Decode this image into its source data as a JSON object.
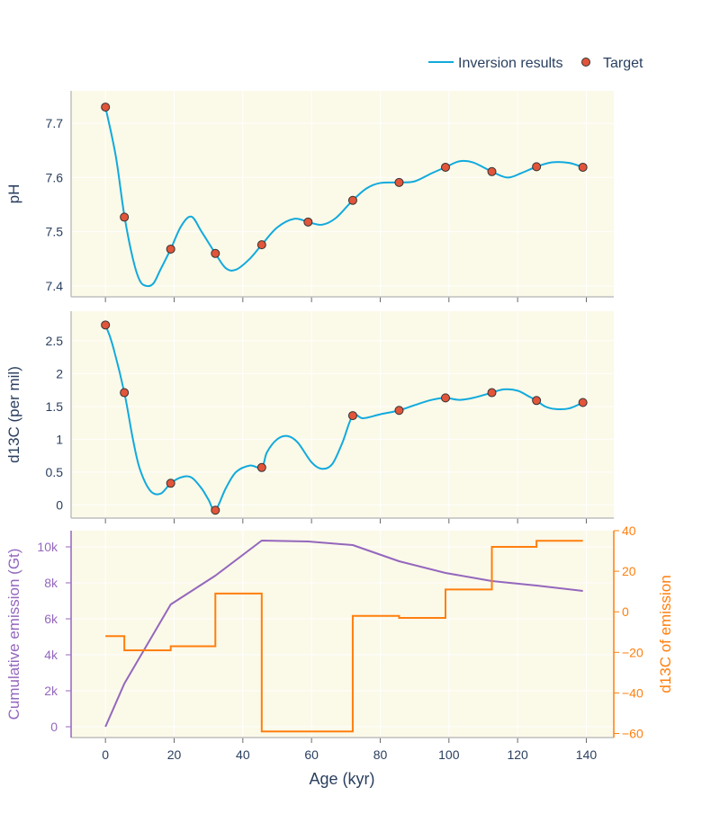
{
  "chart_data": {
    "type": "line",
    "legend": {
      "placement": "top-right",
      "entries": [
        {
          "label": "Inversion results",
          "kind": "line",
          "color": "#11aadd"
        },
        {
          "label": "Target",
          "kind": "marker",
          "color": "#e2553a"
        }
      ]
    },
    "x_axis": {
      "label": "Age (kyr)",
      "range": [
        -10,
        148
      ],
      "ticks": [
        0,
        20,
        40,
        60,
        80,
        100,
        120,
        140
      ],
      "tick_labels": [
        "0",
        "20",
        "40",
        "60",
        "80",
        "100",
        "120",
        "140"
      ]
    },
    "panels": [
      {
        "id": "ph",
        "ylabel": "pH",
        "ylim": [
          7.38,
          7.76
        ],
        "yticks": [
          7.4,
          7.5,
          7.6,
          7.7
        ],
        "ytick_labels": [
          "7.4",
          "7.5",
          "7.6",
          "7.7"
        ],
        "series": [
          {
            "name": "Inversion results",
            "type": "line",
            "color": "#11aadd",
            "x": [
              0,
              3,
              5.5,
              8,
              10,
              12,
              14,
              16,
              19,
              22,
              25,
              28,
              32,
              35,
              38,
              42,
              45.5,
              50,
              55,
              59,
              63,
              67,
              72,
              76,
              80,
              85.5,
              90,
              95,
              99,
              103,
              107,
              112.5,
              117,
              121,
              125.5,
              130,
              135,
              139
            ],
            "y": [
              7.73,
              7.64,
              7.53,
              7.45,
              7.41,
              7.4,
              7.405,
              7.43,
              7.468,
              7.51,
              7.528,
              7.5,
              7.46,
              7.433,
              7.43,
              7.45,
              7.476,
              7.508,
              7.524,
              7.518,
              7.513,
              7.525,
              7.558,
              7.58,
              7.59,
              7.591,
              7.593,
              7.608,
              7.619,
              7.63,
              7.628,
              7.611,
              7.6,
              7.608,
              7.62,
              7.628,
              7.627,
              7.619
            ]
          },
          {
            "name": "Target",
            "type": "scatter",
            "color": "#e2553a",
            "x": [
              0,
              5.5,
              19,
              32,
              45.5,
              59,
              72,
              85.5,
              99,
              112.5,
              125.5,
              139
            ],
            "y": [
              7.73,
              7.527,
              7.468,
              7.46,
              7.476,
              7.518,
              7.558,
              7.591,
              7.619,
              7.611,
              7.62,
              7.619
            ]
          }
        ]
      },
      {
        "id": "d13c",
        "ylabel": "d13C (per mil)",
        "ylim": [
          -0.2,
          2.95
        ],
        "yticks": [
          0,
          0.5,
          1,
          1.5,
          2,
          2.5
        ],
        "ytick_labels": [
          "0",
          "0.5",
          "1",
          "1.5",
          "2",
          "2.5"
        ],
        "series": [
          {
            "name": "Inversion results",
            "type": "line",
            "color": "#11aadd",
            "x": [
              0,
              2,
              5.5,
              8,
              10,
              13,
              16,
              19,
              22,
              25,
              28,
              30,
              32,
              35,
              38,
              42,
              45.5,
              47,
              50,
              53,
              56,
              60,
              63,
              66,
              69,
              72,
              75,
              80,
              85.5,
              90,
              95,
              99,
              103,
              107,
              112.5,
              116,
              120,
              123,
              125.5,
              128,
              131,
              135,
              139
            ],
            "y": [
              2.74,
              2.45,
              1.71,
              1.0,
              0.55,
              0.22,
              0.17,
              0.33,
              0.42,
              0.42,
              0.25,
              0.08,
              -0.08,
              0.25,
              0.5,
              0.6,
              0.57,
              0.8,
              1.0,
              1.05,
              0.95,
              0.65,
              0.55,
              0.62,
              0.95,
              1.36,
              1.32,
              1.38,
              1.44,
              1.52,
              1.6,
              1.63,
              1.6,
              1.63,
              1.71,
              1.76,
              1.74,
              1.66,
              1.59,
              1.5,
              1.46,
              1.47,
              1.56
            ]
          },
          {
            "name": "Target",
            "type": "scatter",
            "color": "#e2553a",
            "x": [
              0,
              5.5,
              19,
              32,
              45.5,
              72,
              85.5,
              99,
              112.5,
              125.5,
              139
            ],
            "y": [
              2.74,
              1.71,
              0.33,
              -0.08,
              0.57,
              1.36,
              1.44,
              1.63,
              1.71,
              1.59,
              1.56
            ]
          }
        ]
      },
      {
        "id": "emission",
        "ylabel": "Cumulative emission (Gt)",
        "ylabel_color": "#9467bd",
        "ylim": [
          -600,
          10900
        ],
        "yticks": [
          0,
          2000,
          4000,
          6000,
          8000,
          10000
        ],
        "ytick_labels": [
          "0",
          "2k",
          "4k",
          "6k",
          "8k",
          "10k"
        ],
        "y2label": "d13C of emission",
        "y2label_color": "#ff7f0e",
        "y2lim": [
          -62,
          40
        ],
        "y2ticks": [
          -60,
          -40,
          -20,
          0,
          20,
          40
        ],
        "y2tick_labels": [
          "−60",
          "−40",
          "−20",
          "0",
          "20",
          "40"
        ],
        "series": [
          {
            "name": "Cumulative emission",
            "type": "line",
            "axis": "left",
            "color": "#9467bd",
            "x": [
              0,
              5.5,
              19,
              32,
              45.5,
              59,
              72,
              85.5,
              99,
              112.5,
              125.5,
              139
            ],
            "y": [
              0,
              2400,
              6800,
              8400,
              10350,
              10300,
              10100,
              9200,
              8550,
              8100,
              7850,
              7550
            ]
          },
          {
            "name": "d13C of emission",
            "type": "step",
            "axis": "right",
            "color": "#ff7f0e",
            "x": [
              0,
              5.5,
              19,
              32,
              45.5,
              72,
              85.5,
              99,
              112.5,
              125.5,
              139
            ],
            "y": [
              -12,
              -19,
              -17,
              9,
              -59,
              -2,
              -3,
              11,
              32,
              35,
              35
            ]
          }
        ]
      }
    ]
  }
}
